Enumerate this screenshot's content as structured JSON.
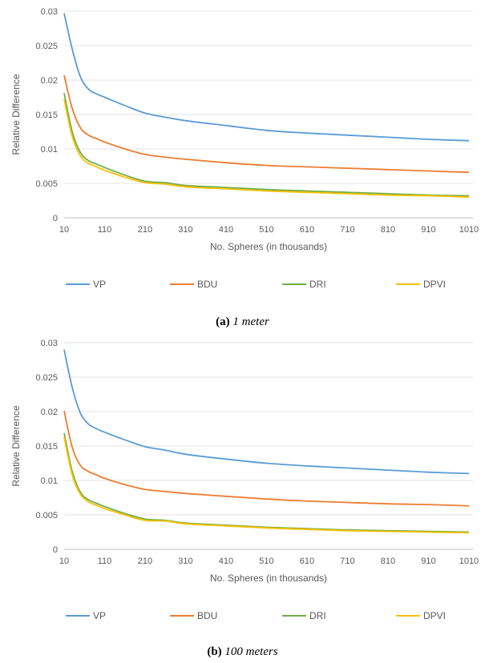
{
  "chart_data": [
    {
      "type": "line",
      "title": "",
      "xlabel": "No. Spheres (in thousands)",
      "ylabel": "Relative Difference",
      "xlim": [
        10,
        1020
      ],
      "ylim": [
        0,
        0.03
      ],
      "x_ticks": [
        "10",
        "110",
        "210",
        "310",
        "410",
        "510",
        "610",
        "710",
        "810",
        "910",
        "1010"
      ],
      "y_ticks": [
        "0",
        "0.005",
        "0.01",
        "0.015",
        "0.02",
        "0.025",
        "0.03"
      ],
      "y_tick_values": [
        0,
        0.005,
        0.01,
        0.015,
        0.02,
        0.025,
        0.03
      ],
      "grid": "horizontal",
      "legend": "bottom",
      "x": [
        10,
        30,
        50,
        70,
        90,
        110,
        160,
        210,
        260,
        310,
        410,
        510,
        610,
        710,
        810,
        910,
        1010
      ],
      "series": [
        {
          "name": "VP",
          "color": "#5b9bd5",
          "values": [
            0.0297,
            0.0245,
            0.0205,
            0.0187,
            0.018,
            0.0175,
            0.0163,
            0.0152,
            0.0146,
            0.0141,
            0.0134,
            0.0127,
            0.0123,
            0.012,
            0.0117,
            0.0114,
            0.0112
          ]
        },
        {
          "name": "BDU",
          "color": "#ed7d31",
          "values": [
            0.0207,
            0.0159,
            0.0131,
            0.012,
            0.0115,
            0.011,
            0.01,
            0.0092,
            0.0088,
            0.0085,
            0.008,
            0.0076,
            0.0074,
            0.0072,
            0.007,
            0.0068,
            0.0066
          ]
        },
        {
          "name": "DRI",
          "color": "#70ad47",
          "values": [
            0.0181,
            0.0125,
            0.0095,
            0.0083,
            0.0078,
            0.0073,
            0.0062,
            0.0053,
            0.0051,
            0.0047,
            0.0044,
            0.0041,
            0.0039,
            0.0037,
            0.0035,
            0.0033,
            0.0032
          ]
        },
        {
          "name": "DPVI",
          "color": "#ffc000",
          "values": [
            0.0172,
            0.0118,
            0.009,
            0.0079,
            0.0074,
            0.0069,
            0.0059,
            0.0051,
            0.0049,
            0.0045,
            0.0042,
            0.0039,
            0.0037,
            0.0035,
            0.0033,
            0.0032,
            0.003
          ]
        }
      ]
    },
    {
      "type": "line",
      "title": "",
      "xlabel": "No. Spheres (in thousands)",
      "ylabel": "Relative Difference",
      "xlim": [
        10,
        1020
      ],
      "ylim": [
        0,
        0.03
      ],
      "x_ticks": [
        "10",
        "110",
        "210",
        "310",
        "410",
        "510",
        "610",
        "710",
        "810",
        "910",
        "1010"
      ],
      "y_ticks": [
        "0",
        "0.005",
        "0.01",
        "0.015",
        "0.02",
        "0.025",
        "0.03"
      ],
      "y_tick_values": [
        0,
        0.005,
        0.01,
        0.015,
        0.02,
        0.025,
        0.03
      ],
      "grid": "horizontal",
      "legend": "bottom",
      "x": [
        10,
        30,
        50,
        70,
        90,
        110,
        160,
        210,
        260,
        310,
        410,
        510,
        610,
        710,
        810,
        910,
        1010
      ],
      "series": [
        {
          "name": "VP",
          "color": "#5b9bd5",
          "values": [
            0.029,
            0.0235,
            0.0198,
            0.0182,
            0.0175,
            0.017,
            0.0159,
            0.0149,
            0.0144,
            0.0138,
            0.0131,
            0.0125,
            0.0121,
            0.0118,
            0.0115,
            0.0112,
            0.011
          ]
        },
        {
          "name": "BDU",
          "color": "#ed7d31",
          "values": [
            0.0201,
            0.0148,
            0.0122,
            0.0113,
            0.0108,
            0.0103,
            0.0094,
            0.0087,
            0.0084,
            0.0081,
            0.0077,
            0.0073,
            0.007,
            0.0068,
            0.0066,
            0.0065,
            0.0063
          ]
        },
        {
          "name": "DRI",
          "color": "#70ad47",
          "values": [
            0.0169,
            0.0113,
            0.0083,
            0.0072,
            0.0067,
            0.0062,
            0.0052,
            0.0044,
            0.0042,
            0.0038,
            0.0035,
            0.0032,
            0.003,
            0.0028,
            0.0027,
            0.0026,
            0.0025
          ]
        },
        {
          "name": "DPVI",
          "color": "#ffc000",
          "values": [
            0.0163,
            0.0108,
            0.008,
            0.0069,
            0.0064,
            0.0059,
            0.005,
            0.0042,
            0.0041,
            0.0037,
            0.0034,
            0.0031,
            0.0029,
            0.0027,
            0.0026,
            0.0025,
            0.0024
          ]
        }
      ]
    }
  ],
  "captions": [
    {
      "label": "(a)",
      "text": "1 meter"
    },
    {
      "label": "(b)",
      "text": "100 meters"
    }
  ]
}
